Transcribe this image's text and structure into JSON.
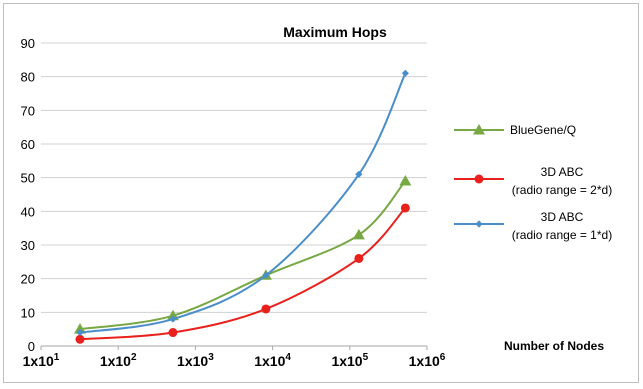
{
  "chart_data": {
    "type": "line",
    "title": "Maximum Hops",
    "xlabel": "Number of Nodes",
    "ylabel": "",
    "x_scale": "log",
    "xlim": [
      10,
      1000000
    ],
    "ylim": [
      0,
      90
    ],
    "y_ticks": [
      0,
      10,
      20,
      30,
      40,
      50,
      60,
      70,
      80,
      90
    ],
    "x_ticks": [
      {
        "value": 10,
        "base": "1x10",
        "exp": "1"
      },
      {
        "value": 100,
        "base": "1x10",
        "exp": "2"
      },
      {
        "value": 1000,
        "base": "1x10",
        "exp": "3"
      },
      {
        "value": 10000,
        "base": "1x10",
        "exp": "4"
      },
      {
        "value": 100000,
        "base": "1x10",
        "exp": "5"
      },
      {
        "value": 1000000,
        "base": "1x10",
        "exp": "6"
      }
    ],
    "grid": true,
    "legend_position": "right",
    "series": [
      {
        "name": "BlueGene/Q",
        "legend_lines": [
          "BlueGene/Q"
        ],
        "color": "#77a843",
        "marker": "triangle",
        "x": [
          32,
          512,
          8192,
          131072,
          524288
        ],
        "y": [
          5,
          9,
          21,
          33,
          49
        ]
      },
      {
        "name": "3D ABC (radio range = 2*d)",
        "legend_lines": [
          "3D ABC",
          "(radio range = 2*d)"
        ],
        "color": "#e8211d",
        "marker": "circle",
        "x": [
          32,
          512,
          8192,
          131072,
          524288
        ],
        "y": [
          2,
          4,
          11,
          26,
          41
        ]
      },
      {
        "name": "3D ABC (radio range = 1*d)",
        "legend_lines": [
          "3D ABC",
          "(radio range = 1*d)"
        ],
        "color": "#4a8ec9",
        "marker": "diamond",
        "x": [
          32,
          512,
          8192,
          131072,
          524288
        ],
        "y": [
          4,
          8,
          21,
          51,
          81
        ]
      }
    ]
  }
}
